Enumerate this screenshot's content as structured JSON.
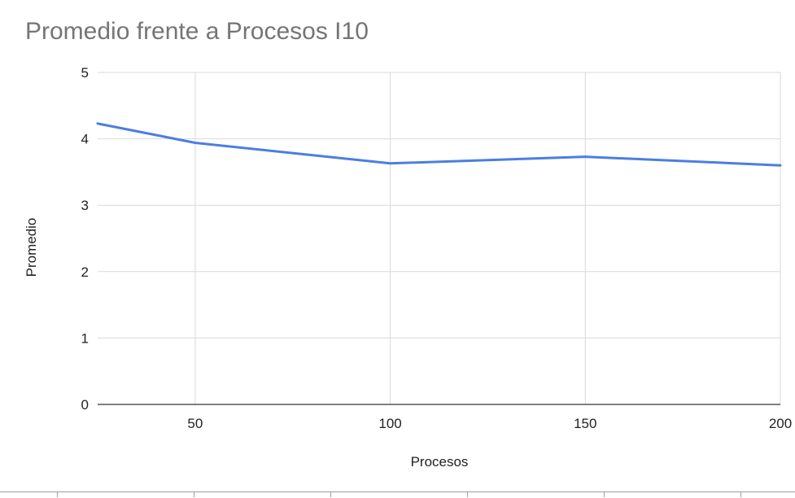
{
  "chart_data": {
    "type": "line",
    "title": "Promedio frente a Procesos I10",
    "xlabel": "Procesos",
    "ylabel": "Promedio",
    "x": [
      25,
      50,
      100,
      150,
      200
    ],
    "xlim": [
      25,
      200
    ],
    "ylim": [
      0,
      5
    ],
    "x_ticks": [
      "50",
      "100",
      "150",
      "200"
    ],
    "y_ticks": [
      "0",
      "1",
      "2",
      "3",
      "4",
      "5"
    ],
    "grid": true,
    "legend": "none",
    "series": [
      {
        "values": [
          4.23,
          3.94,
          3.63,
          3.73,
          3.6
        ],
        "color": "#4a7ee3"
      }
    ]
  }
}
